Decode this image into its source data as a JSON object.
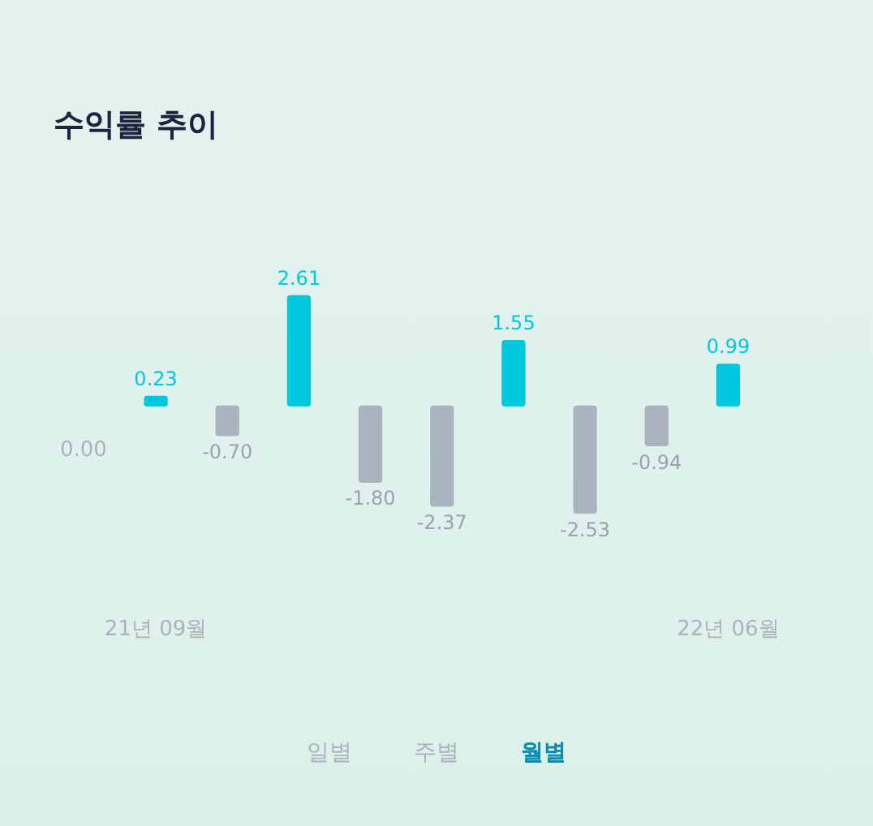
{
  "chart_data": {
    "type": "bar",
    "title": "수익률 추이",
    "categories": [
      "21년 09월",
      null,
      null,
      null,
      null,
      null,
      null,
      null,
      "22년 06월"
    ],
    "values": [
      0.23,
      -0.7,
      2.61,
      -1.8,
      -2.37,
      1.55,
      -2.53,
      -0.94,
      0.99
    ],
    "value_labels": [
      "0.23",
      "-0.70",
      "2.61",
      "-1.80",
      "-2.37",
      "1.55",
      "-2.53",
      "-0.94",
      "0.99"
    ],
    "colors": [
      "#00c8dc",
      "#aab4bf",
      "#00c8dc",
      "#aab4bf",
      "#aab4bf",
      "#00c8dc",
      "#aab4bf",
      "#aab4bf",
      "#00c8dc"
    ],
    "grid": false,
    "annotations": [
      "0.00",
      "일별",
      "주별",
      "월별"
    ]
  }
}
